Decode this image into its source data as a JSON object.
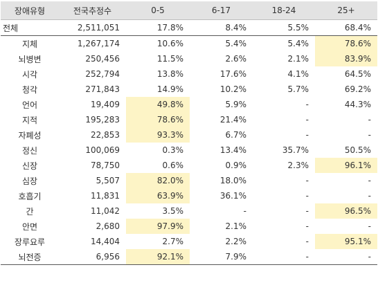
{
  "table": {
    "headers": [
      "장애유형",
      "전국추정수",
      "0-5",
      "6-17",
      "18-24",
      "25+"
    ],
    "total": {
      "type": "전체",
      "count": "2,511,051",
      "v": [
        "17.8%",
        "8.4%",
        "5.5%",
        "68.4%"
      ],
      "hl": [
        false,
        false,
        false,
        false
      ]
    },
    "rows": [
      {
        "type": "지체",
        "count": "1,267,174",
        "v": [
          "10.6%",
          "5.4%",
          "5.4%",
          "78.6%"
        ],
        "hl": [
          false,
          false,
          false,
          true
        ]
      },
      {
        "type": "뇌병변",
        "count": "250,456",
        "v": [
          "11.5%",
          "2.6%",
          "2.1%",
          "83.9%"
        ],
        "hl": [
          false,
          false,
          false,
          true
        ]
      },
      {
        "type": "시각",
        "count": "252,794",
        "v": [
          "13.8%",
          "17.6%",
          "4.1%",
          "64.5%"
        ],
        "hl": [
          false,
          false,
          false,
          false
        ]
      },
      {
        "type": "청각",
        "count": "271,843",
        "v": [
          "14.9%",
          "10.2%",
          "5.7%",
          "69.2%"
        ],
        "hl": [
          false,
          false,
          false,
          false
        ]
      },
      {
        "type": "언어",
        "count": "19,409",
        "v": [
          "49.8%",
          "5.9%",
          "-",
          "44.3%"
        ],
        "hl": [
          true,
          false,
          false,
          false
        ]
      },
      {
        "type": "지적",
        "count": "195,283",
        "v": [
          "78.6%",
          "21.4%",
          "-",
          "-"
        ],
        "hl": [
          true,
          false,
          false,
          false
        ]
      },
      {
        "type": "자폐성",
        "count": "22,853",
        "v": [
          "93.3%",
          "6.7%",
          "-",
          "-"
        ],
        "hl": [
          true,
          false,
          false,
          false
        ]
      },
      {
        "type": "정신",
        "count": "100,069",
        "v": [
          "0.3%",
          "13.4%",
          "35.7%",
          "50.5%"
        ],
        "hl": [
          false,
          false,
          false,
          false
        ]
      },
      {
        "type": "신장",
        "count": "78,750",
        "v": [
          "0.6%",
          "0.9%",
          "2.3%",
          "96.1%"
        ],
        "hl": [
          false,
          false,
          false,
          true
        ]
      },
      {
        "type": "심장",
        "count": "5,507",
        "v": [
          "82.0%",
          "18.0%",
          "-",
          "-"
        ],
        "hl": [
          true,
          false,
          false,
          false
        ]
      },
      {
        "type": "호흡기",
        "count": "11,831",
        "v": [
          "63.9%",
          "36.1%",
          "-",
          "-"
        ],
        "hl": [
          true,
          false,
          false,
          false
        ]
      },
      {
        "type": "간",
        "count": "11,042",
        "v": [
          "3.5%",
          "-",
          "-",
          "96.5%"
        ],
        "hl": [
          false,
          false,
          false,
          true
        ]
      },
      {
        "type": "안면",
        "count": "2,680",
        "v": [
          "97.9%",
          "2.1%",
          "-",
          "-"
        ],
        "hl": [
          true,
          false,
          false,
          false
        ]
      },
      {
        "type": "장루요루",
        "count": "14,404",
        "v": [
          "2.7%",
          "2.2%",
          "-",
          "95.1%"
        ],
        "hl": [
          false,
          false,
          false,
          true
        ]
      },
      {
        "type": "뇌전증",
        "count": "6,956",
        "v": [
          "92.1%",
          "7.9%",
          "-",
          "-"
        ],
        "hl": [
          true,
          false,
          false,
          false
        ]
      }
    ]
  },
  "colors": {
    "header_bg": "#e3e3e3",
    "highlight": "#fdf4c6",
    "rule": "#555555"
  }
}
